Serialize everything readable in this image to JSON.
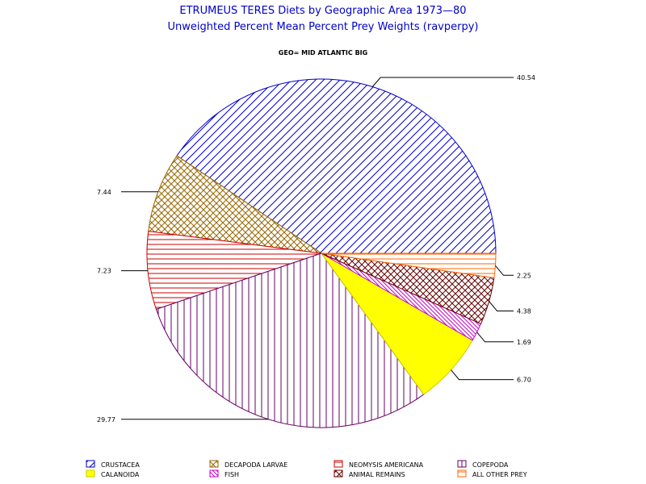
{
  "chart_data": {
    "type": "pie",
    "title": "ETRUMEUS TERES Diets by Geographic Area 1973—80",
    "subtitle": "Unweighted Percent Mean Percent Prey  Weights (ravperpy)",
    "group_label": "GEO= MID ATLANTIC BIG",
    "slices": [
      {
        "name": "CRUSTACEA",
        "value": 40.54,
        "label": "40.54",
        "color": "#0000cc",
        "fill": "diag-up",
        "fill_color": "#0000cc"
      },
      {
        "name": "DECAPODA LARVAE",
        "value": 7.44,
        "label": "7.44",
        "color": "#996600",
        "fill": "crosshatch",
        "fill_color": "#996600"
      },
      {
        "name": "NEOMYSIS AMERICANA",
        "value": 7.23,
        "label": "7.23",
        "color": "#cc0000",
        "fill": "horizontal",
        "fill_color": "#cc0000"
      },
      {
        "name": "COPEPODA",
        "value": 29.77,
        "label": "29.77",
        "color": "#660066",
        "fill": "vertical",
        "fill_color": "#660066"
      },
      {
        "name": "CALANOIDA",
        "value": 6.7,
        "label": "6.70",
        "color": "#cccc00",
        "fill": "solid",
        "fill_color": "#ffff00"
      },
      {
        "name": "FISH",
        "value": 1.69,
        "label": "1.69",
        "color": "#cc00cc",
        "fill": "diag-down",
        "fill_color": "#cc00cc"
      },
      {
        "name": "ANIMAL REMAINS",
        "value": 4.38,
        "label": "4.38",
        "color": "#660000",
        "fill": "crosshatch",
        "fill_color": "#660000"
      },
      {
        "name": "ALL OTHER PREY",
        "value": 2.25,
        "label": "2.25",
        "color": "#ff6600",
        "fill": "horizontal",
        "fill_color": "#ff6600"
      }
    ],
    "legend_position": "bottom",
    "legend_order": [
      "CRUSTACEA",
      "DECAPODA LARVAE",
      "NEOMYSIS AMERICANA",
      "COPEPODA",
      "CALANOIDA",
      "FISH",
      "ANIMAL REMAINS",
      "ALL OTHER PREY"
    ]
  }
}
